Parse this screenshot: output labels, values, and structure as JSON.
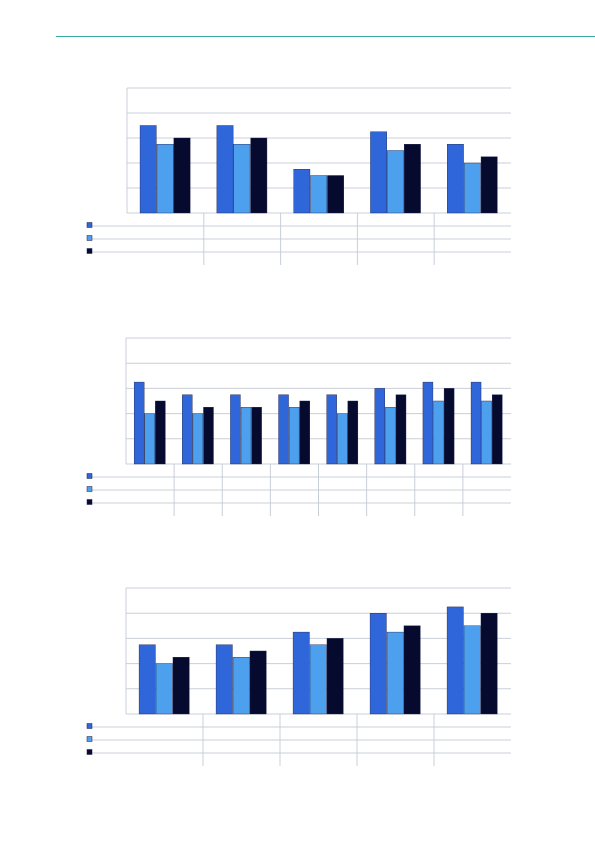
{
  "colors": {
    "series": [
      "#2f66d9",
      "#4da0ee",
      "#060a2e"
    ],
    "rule": "#3aa9a0",
    "grid": "#c9cfd8"
  },
  "chart_data": [
    {
      "type": "bar",
      "categories": [
        "",
        "",
        "",
        "",
        ""
      ],
      "series": [
        {
          "values": [
            70,
            70,
            35,
            65,
            55
          ]
        },
        {
          "values": [
            55,
            55,
            30,
            50,
            40
          ]
        },
        {
          "values": [
            60,
            60,
            30,
            55,
            45
          ]
        }
      ],
      "ylim": [
        0,
        100
      ],
      "grid": true,
      "legend": "data-table-below"
    },
    {
      "type": "bar",
      "categories": [
        "",
        "",
        "",
        "",
        "",
        "",
        "",
        ""
      ],
      "series": [
        {
          "values": [
            65,
            55,
            55,
            55,
            55,
            60,
            65,
            65
          ]
        },
        {
          "values": [
            40,
            40,
            45,
            45,
            40,
            45,
            50,
            50
          ]
        },
        {
          "values": [
            50,
            45,
            45,
            50,
            50,
            55,
            60,
            55
          ]
        }
      ],
      "ylim": [
        0,
        100
      ],
      "grid": true,
      "legend": "data-table-below"
    },
    {
      "type": "bar",
      "categories": [
        "",
        "",
        "",
        "",
        ""
      ],
      "series": [
        {
          "values": [
            55,
            55,
            65,
            80,
            85
          ]
        },
        {
          "values": [
            40,
            45,
            55,
            65,
            70
          ]
        },
        {
          "values": [
            45,
            50,
            60,
            70,
            80
          ]
        }
      ],
      "ylim": [
        0,
        100
      ],
      "grid": true,
      "legend": "data-table-below"
    }
  ]
}
